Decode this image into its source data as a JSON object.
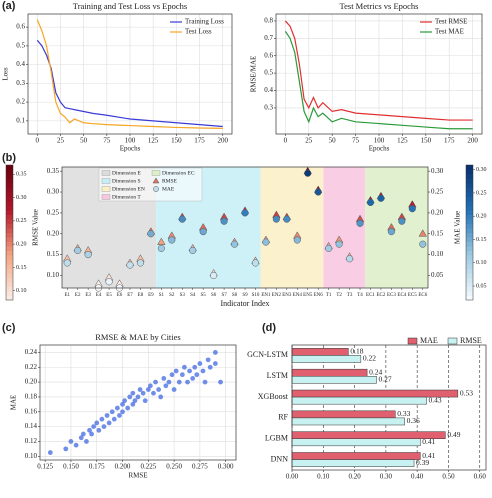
{
  "chart_data": [
    {
      "type": "line",
      "panel_label": "(a)",
      "title": "Training and Test Loss vs Epochs",
      "x_label": "Epochs",
      "y_label": "Loss",
      "x": [
        0,
        5,
        10,
        15,
        20,
        25,
        30,
        35,
        40,
        50,
        60,
        75,
        100,
        125,
        150,
        175,
        200
      ],
      "series": [
        {
          "name": "Training Loss",
          "color": "#3b3bd6",
          "values": [
            0.53,
            0.5,
            0.45,
            0.38,
            0.25,
            0.2,
            0.17,
            0.165,
            0.16,
            0.15,
            0.14,
            0.13,
            0.11,
            0.1,
            0.09,
            0.08,
            0.07
          ]
        },
        {
          "name": "Test Loss",
          "color": "#f5a623",
          "values": [
            0.64,
            0.58,
            0.5,
            0.36,
            0.2,
            0.14,
            0.12,
            0.09,
            0.11,
            0.09,
            0.085,
            0.08,
            0.075,
            0.07,
            0.065,
            0.062,
            0.06
          ]
        }
      ],
      "xlim": [
        -10,
        210
      ],
      "xticks": [
        0,
        25,
        50,
        75,
        100,
        125,
        150,
        175,
        200
      ],
      "ylim": [
        0.03,
        0.67
      ],
      "yticks": [
        0.1,
        0.2,
        0.3,
        0.4,
        0.5,
        0.6
      ],
      "grid": true,
      "legend": "upper right"
    },
    {
      "type": "line",
      "title": "Test Metrics vs Epochs",
      "x_label": "Epochs",
      "y_label": "RMSE/MAE",
      "x": [
        0,
        5,
        10,
        15,
        20,
        25,
        30,
        35,
        40,
        50,
        60,
        75,
        100,
        125,
        150,
        175,
        200
      ],
      "series": [
        {
          "name": "Test RMSE",
          "color": "#e03030",
          "values": [
            0.8,
            0.77,
            0.7,
            0.55,
            0.35,
            0.3,
            0.36,
            0.3,
            0.33,
            0.28,
            0.29,
            0.27,
            0.26,
            0.25,
            0.24,
            0.23,
            0.23
          ]
        },
        {
          "name": "Test MAE",
          "color": "#2a9a3a",
          "values": [
            0.74,
            0.7,
            0.62,
            0.45,
            0.28,
            0.22,
            0.3,
            0.25,
            0.27,
            0.22,
            0.24,
            0.22,
            0.21,
            0.2,
            0.19,
            0.18,
            0.18
          ]
        }
      ],
      "xlim": [
        -10,
        210
      ],
      "xticks": [
        0,
        25,
        50,
        75,
        100,
        125,
        150,
        175,
        200
      ],
      "ylim": [
        0.15,
        0.84
      ],
      "yticks": [
        0.3,
        0.4,
        0.5,
        0.6,
        0.7,
        0.8
      ],
      "grid": true,
      "legend": "upper right"
    },
    {
      "type": "dot",
      "panel_label": "(b)",
      "x_label": "Indicator Index",
      "y_label": "RMSE Value",
      "y2_label": "MAE Value",
      "categories": [
        "E1",
        "E2",
        "E3",
        "E4",
        "E5",
        "E6",
        "E7",
        "E8",
        "E9",
        "S1",
        "S2",
        "S3",
        "S4",
        "S5",
        "S6",
        "S7",
        "S8",
        "S9",
        "S10",
        "EN1",
        "EN2",
        "EN3",
        "EN4",
        "EN5",
        "EN6",
        "T1",
        "T2",
        "T3",
        "T4",
        "EC1",
        "EC2",
        "EC3",
        "EC4",
        "EC5",
        "EC6"
      ],
      "bands": [
        {
          "name": "Dimension E",
          "color": "#dcdcdc"
        },
        {
          "name": "Dimension S",
          "color": "#c6eef7"
        },
        {
          "name": "Dimension EN",
          "color": "#fbefc4"
        },
        {
          "name": "Dimension T",
          "color": "#f8c6df"
        },
        {
          "name": "Dimension EC",
          "color": "#dcefc8"
        }
      ],
      "series": [
        {
          "name": "RMSE",
          "marker": "triangle",
          "axis": "y",
          "values": [
            0.14,
            0.165,
            0.16,
            0.08,
            0.095,
            0.08,
            0.13,
            0.14,
            0.205,
            0.18,
            0.195,
            0.24,
            0.165,
            0.215,
            0.105,
            0.24,
            0.18,
            0.255,
            0.135,
            0.185,
            0.245,
            0.24,
            0.195,
            0.35,
            0.305,
            0.17,
            0.185,
            0.145,
            0.235,
            0.28,
            0.29,
            0.215,
            0.24,
            0.27,
            0.2
          ],
          "colorbar": {
            "lim": [
              0.08,
              0.37
            ],
            "colors": [
              "#fbeee8",
              "#f4a582",
              "#b2182b",
              "#67000d"
            ],
            "ticks": [
              {
                "value": 0.1,
                "label": "0.10"
              },
              0.15,
              {
                "value": 0.2,
                "label": "0.20"
              },
              0.25,
              {
                "value": 0.3,
                "label": "0.30"
              },
              0.35
            ]
          }
        },
        {
          "name": "MAE",
          "marker": "circle",
          "axis": "y2",
          "values": [
            0.08,
            0.11,
            0.1,
            0.02,
            0.035,
            0.02,
            0.075,
            0.08,
            0.15,
            0.115,
            0.135,
            0.185,
            0.11,
            0.155,
            0.05,
            0.18,
            0.125,
            0.2,
            0.08,
            0.13,
            0.185,
            0.185,
            0.135,
            0.295,
            0.25,
            0.115,
            0.125,
            0.09,
            0.175,
            0.225,
            0.235,
            0.155,
            0.18,
            0.21,
            0.125
          ],
          "colorbar": {
            "lim": [
              0.02,
              0.31
            ],
            "colors": [
              "#f7fbff",
              "#9ecae1",
              "#2171b5",
              "#08306b"
            ],
            "ticks": [
              0.05,
              {
                "value": 0.1,
                "label": "0.10"
              },
              0.15,
              {
                "value": 0.2,
                "label": "0.20"
              },
              0.25,
              {
                "value": 0.3,
                "label": "0.30"
              }
            ]
          }
        }
      ],
      "ylim": [
        0.07,
        0.36
      ],
      "yticks": [
        {
          "value": 0.1,
          "label": "0.10"
        },
        0.15,
        {
          "value": 0.2,
          "label": "0.20"
        },
        0.25,
        {
          "value": 0.3,
          "label": "0.30"
        },
        0.35
      ],
      "y2lim": [
        0.02,
        0.31
      ],
      "y2ticks": [
        0.05,
        {
          "value": 0.1,
          "label": "0.10"
        },
        0.15,
        {
          "value": 0.2,
          "label": "0.20"
        },
        0.25,
        {
          "value": 0.3,
          "label": "0.30"
        }
      ],
      "legend": "upper left"
    },
    {
      "type": "scatter",
      "panel_label": "(c)",
      "title": "RMSE & MAE by Cities",
      "x_label": "RMSE",
      "y_label": "MAE",
      "color": "#4169e1",
      "x": [
        0.13,
        0.145,
        0.15,
        0.155,
        0.16,
        0.162,
        0.165,
        0.168,
        0.17,
        0.172,
        0.175,
        0.177,
        0.18,
        0.182,
        0.185,
        0.187,
        0.19,
        0.192,
        0.195,
        0.197,
        0.2,
        0.2,
        0.202,
        0.205,
        0.207,
        0.21,
        0.21,
        0.212,
        0.215,
        0.217,
        0.22,
        0.222,
        0.225,
        0.227,
        0.23,
        0.232,
        0.235,
        0.237,
        0.24,
        0.242,
        0.245,
        0.248,
        0.25,
        0.252,
        0.255,
        0.258,
        0.26,
        0.263,
        0.265,
        0.268,
        0.27,
        0.272,
        0.275,
        0.278,
        0.28,
        0.283,
        0.285,
        0.29,
        0.295,
        0.29
      ],
      "values": [
        0.105,
        0.11,
        0.12,
        0.115,
        0.125,
        0.13,
        0.12,
        0.135,
        0.13,
        0.14,
        0.145,
        0.135,
        0.15,
        0.14,
        0.155,
        0.145,
        0.16,
        0.15,
        0.165,
        0.155,
        0.17,
        0.16,
        0.175,
        0.165,
        0.18,
        0.17,
        0.185,
        0.175,
        0.18,
        0.19,
        0.185,
        0.175,
        0.19,
        0.195,
        0.185,
        0.2,
        0.19,
        0.18,
        0.205,
        0.195,
        0.2,
        0.21,
        0.19,
        0.215,
        0.2,
        0.21,
        0.22,
        0.2,
        0.215,
        0.205,
        0.22,
        0.21,
        0.225,
        0.215,
        0.2,
        0.23,
        0.22,
        0.24,
        0.2,
        0.225
      ],
      "xlim": [
        0.12,
        0.31
      ],
      "xticks": [
        0.125,
        {
          "value": 0.15,
          "label": "0.150"
        },
        0.175,
        {
          "value": 0.2,
          "label": "0.200"
        },
        0.225,
        {
          "value": 0.25,
          "label": "0.250"
        },
        0.275,
        {
          "value": 0.3,
          "label": "0.300"
        }
      ],
      "ylim": [
        0.095,
        0.25
      ],
      "yticks": [
        {
          "value": 0.1,
          "label": "0.10"
        },
        0.12,
        0.14,
        0.16,
        0.18,
        {
          "value": 0.2,
          "label": "0.20"
        },
        0.22,
        0.24
      ],
      "grid": true
    },
    {
      "type": "bar",
      "orientation": "horizontal",
      "panel_label": "(d)",
      "categories": [
        "GCN-LSTM",
        "LSTM",
        "XGBoost",
        "RF",
        "LGBM",
        "DNN"
      ],
      "series": [
        {
          "name": "MAE",
          "color": "#e06070",
          "values": [
            0.18,
            0.24,
            0.53,
            0.33,
            0.49,
            0.41
          ]
        },
        {
          "name": "RMSE",
          "color": "#c8f2f2",
          "values": [
            0.22,
            0.27,
            0.43,
            0.36,
            0.41,
            0.39
          ]
        }
      ],
      "xlim": [
        0,
        0.62
      ],
      "xticks": [
        {
          "value": 0,
          "label": "0.00"
        },
        {
          "value": 0.1,
          "label": "0.10"
        },
        {
          "value": 0.2,
          "label": "0.20"
        },
        {
          "value": 0.3,
          "label": "0.30"
        },
        {
          "value": 0.4,
          "label": "0.40"
        },
        {
          "value": 0.5,
          "label": "0.50"
        },
        {
          "value": 0.6,
          "label": "0.60"
        }
      ],
      "grid": true,
      "legend": "upper right"
    }
  ]
}
